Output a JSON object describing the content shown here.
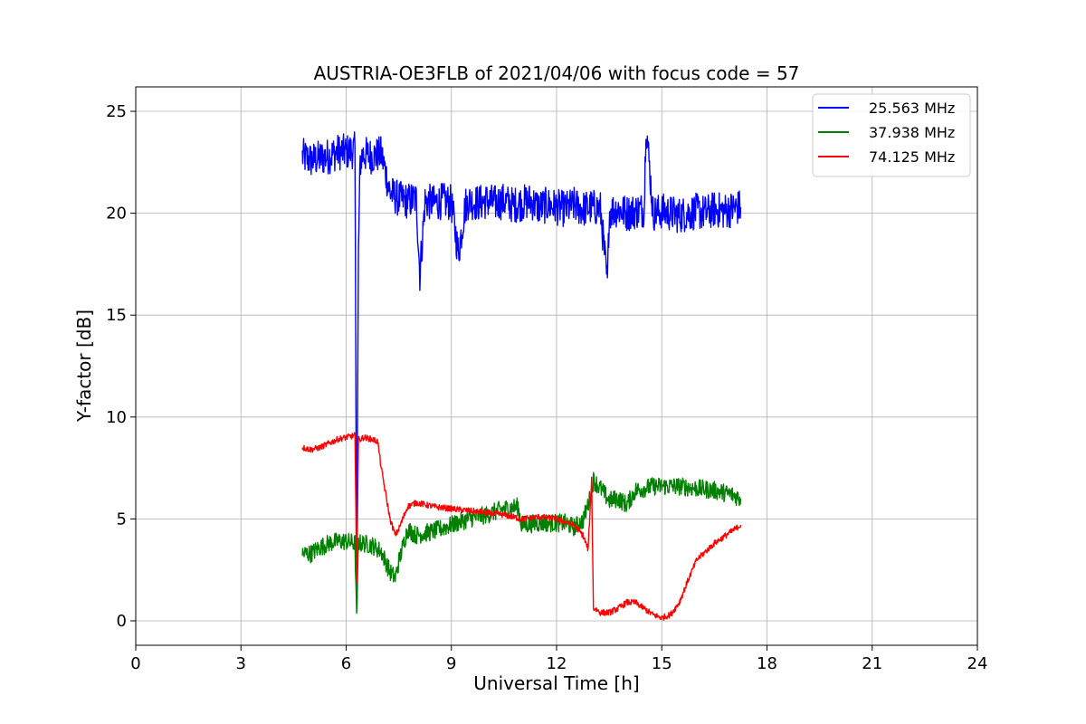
{
  "chart_data": {
    "type": "line",
    "title": "AUSTRIA-OE3FLB of 2021/04/06 with focus code = 57",
    "xlabel": "Universal Time [h]",
    "ylabel": "Y-factor [dB]",
    "xlim": [
      0,
      24
    ],
    "ylim": [
      -1.2,
      26.2
    ],
    "xticks": [
      "0",
      "3",
      "6",
      "9",
      "12",
      "15",
      "18",
      "21",
      "24"
    ],
    "yticks": [
      "0",
      "5",
      "10",
      "15",
      "20",
      "25"
    ],
    "grid": true,
    "legend_position": "top-right",
    "series": [
      {
        "name": "25.563 MHz",
        "color": "#0000ff",
        "x": [
          4.75,
          5.0,
          5.25,
          5.5,
          5.75,
          6.0,
          6.25,
          6.3,
          6.35,
          6.4,
          6.45,
          6.5,
          6.75,
          7.0,
          7.1,
          7.25,
          7.5,
          7.75,
          8.0,
          8.1,
          8.25,
          8.5,
          8.75,
          9.0,
          9.2,
          9.4,
          9.5,
          9.75,
          10.0,
          10.25,
          10.5,
          10.75,
          11.0,
          11.25,
          11.5,
          11.75,
          12.0,
          12.25,
          12.5,
          12.75,
          13.0,
          13.25,
          13.45,
          13.5,
          13.75,
          14.0,
          14.25,
          14.5,
          14.55,
          14.75,
          15.0,
          15.25,
          15.5,
          15.75,
          16.0,
          16.25,
          16.5,
          16.75,
          17.0,
          17.25
        ],
        "y": [
          22.8,
          22.6,
          22.7,
          22.8,
          23.0,
          23.0,
          23.1,
          2.0,
          18.0,
          22.5,
          22.8,
          22.9,
          22.8,
          22.9,
          22.2,
          21.0,
          20.7,
          20.6,
          20.7,
          17.0,
          20.6,
          20.5,
          20.6,
          20.5,
          18.0,
          20.4,
          20.6,
          20.5,
          20.6,
          20.5,
          20.6,
          20.4,
          20.5,
          20.6,
          20.3,
          20.4,
          20.3,
          20.2,
          20.4,
          20.2,
          20.3,
          20.2,
          16.5,
          20.1,
          20.2,
          20.0,
          20.1,
          20.2,
          24.5,
          20.0,
          20.1,
          20.0,
          19.9,
          20.0,
          20.1,
          20.0,
          20.2,
          20.1,
          20.2,
          20.3
        ],
        "noise": 0.9
      },
      {
        "name": "37.938 MHz",
        "color": "#008000",
        "x": [
          4.75,
          5.0,
          5.25,
          5.5,
          5.75,
          6.0,
          6.25,
          6.3,
          6.35,
          6.4,
          6.5,
          6.75,
          7.0,
          7.25,
          7.4,
          7.5,
          7.75,
          8.0,
          8.5,
          9.0,
          9.5,
          10.0,
          10.5,
          10.9,
          11.0,
          11.5,
          12.0,
          12.25,
          12.5,
          12.75,
          12.95,
          13.05,
          13.25,
          13.5,
          13.75,
          14.0,
          14.25,
          14.5,
          14.75,
          15.0,
          15.5,
          16.0,
          16.5,
          17.0,
          17.25
        ],
        "y": [
          3.3,
          3.3,
          3.6,
          3.8,
          3.9,
          3.9,
          3.8,
          0.0,
          3.9,
          3.8,
          3.8,
          3.7,
          3.4,
          2.4,
          2.1,
          2.9,
          4.5,
          4.2,
          4.4,
          4.7,
          5.0,
          5.2,
          5.5,
          5.6,
          4.7,
          4.8,
          4.8,
          4.8,
          4.6,
          4.9,
          6.0,
          6.9,
          6.5,
          5.9,
          6.0,
          5.7,
          6.4,
          6.5,
          6.6,
          6.6,
          6.6,
          6.5,
          6.4,
          6.2,
          6.0
        ],
        "noise": 0.45
      },
      {
        "name": "74.125 MHz",
        "color": "#ff0000",
        "x": [
          4.75,
          5.0,
          5.25,
          5.5,
          5.75,
          6.0,
          6.25,
          6.3,
          6.35,
          6.4,
          6.5,
          6.75,
          6.9,
          7.0,
          7.25,
          7.4,
          7.5,
          7.75,
          8.0,
          8.5,
          9.0,
          9.5,
          10.0,
          10.5,
          11.0,
          11.5,
          12.0,
          12.5,
          12.75,
          12.9,
          13.0,
          13.05,
          13.1,
          13.25,
          13.5,
          13.75,
          14.0,
          14.25,
          14.5,
          14.75,
          15.0,
          15.25,
          15.5,
          15.75,
          16.0,
          16.5,
          17.0,
          17.25
        ],
        "y": [
          8.5,
          8.4,
          8.5,
          8.7,
          8.9,
          9.0,
          9.1,
          2.0,
          8.9,
          8.9,
          9.0,
          8.9,
          8.8,
          7.5,
          5.0,
          4.2,
          4.5,
          5.6,
          5.8,
          5.6,
          5.5,
          5.4,
          5.3,
          5.2,
          5.0,
          5.1,
          5.0,
          4.7,
          4.2,
          3.5,
          7.0,
          0.6,
          0.6,
          0.4,
          0.4,
          0.6,
          0.9,
          0.9,
          0.6,
          0.3,
          0.15,
          0.3,
          0.9,
          2.0,
          3.0,
          3.8,
          4.4,
          4.7
        ],
        "noise": 0.15
      }
    ]
  }
}
